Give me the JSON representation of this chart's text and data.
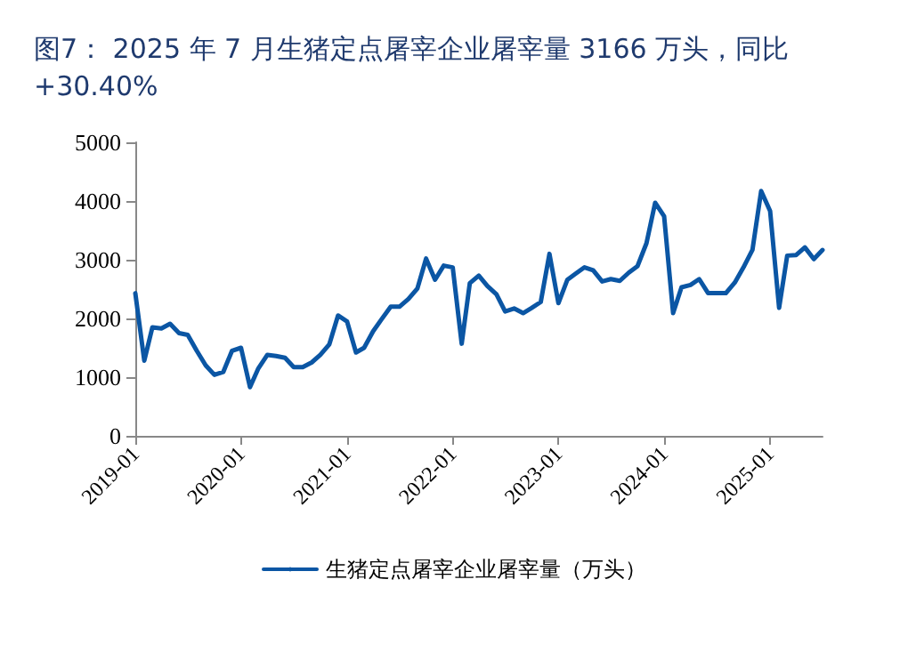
{
  "chart_data": {
    "type": "line",
    "title": "图7： 2025 年 7 月生猪定点屠宰企业屠宰量 3166 万头，同比+30.40%",
    "x": [
      "2019-01",
      "2019-02",
      "2019-03",
      "2019-04",
      "2019-05",
      "2019-06",
      "2019-07",
      "2019-08",
      "2019-09",
      "2019-10",
      "2019-11",
      "2019-12",
      "2020-01",
      "2020-02",
      "2020-03",
      "2020-04",
      "2020-05",
      "2020-06",
      "2020-07",
      "2020-08",
      "2020-09",
      "2020-10",
      "2020-11",
      "2020-12",
      "2021-01",
      "2021-02",
      "2021-03",
      "2021-04",
      "2021-05",
      "2021-06",
      "2021-07",
      "2021-08",
      "2021-09",
      "2021-10",
      "2021-11",
      "2021-12",
      "2022-01",
      "2022-02",
      "2022-03",
      "2022-04",
      "2022-05",
      "2022-06",
      "2022-07",
      "2022-08",
      "2022-09",
      "2022-10",
      "2022-11",
      "2022-12",
      "2023-01",
      "2023-02",
      "2023-03",
      "2023-04",
      "2023-05",
      "2023-06",
      "2023-07",
      "2023-08",
      "2023-09",
      "2023-10",
      "2023-11",
      "2023-12",
      "2024-01",
      "2024-02",
      "2024-03",
      "2024-04",
      "2024-05",
      "2024-06",
      "2024-07",
      "2024-08",
      "2024-09",
      "2024-10",
      "2024-11",
      "2024-12",
      "2025-01",
      "2025-02",
      "2025-03",
      "2025-04",
      "2025-05",
      "2025-06",
      "2025-07"
    ],
    "series": [
      {
        "name": "生猪定点屠宰企业屠宰量（万头）",
        "color": "#0b56a4",
        "values": [
          2430,
          1280,
          1850,
          1830,
          1910,
          1750,
          1720,
          1450,
          1200,
          1040,
          1090,
          1450,
          1500,
          830,
          1150,
          1380,
          1360,
          1330,
          1170,
          1170,
          1250,
          1380,
          1560,
          2050,
          1950,
          1420,
          1500,
          1780,
          1990,
          2200,
          2200,
          2330,
          2510,
          3020,
          2660,
          2900,
          2870,
          1570,
          2600,
          2730,
          2550,
          2410,
          2120,
          2170,
          2090,
          2180,
          2280,
          3100,
          2260,
          2660,
          2760,
          2870,
          2820,
          2630,
          2670,
          2640,
          2780,
          2890,
          3280,
          3970,
          3740,
          2090,
          2530,
          2570,
          2670,
          2430,
          2430,
          2430,
          2610,
          2870,
          3170,
          4170,
          3830,
          2180,
          3070,
          3080,
          3210,
          3010,
          3166
        ]
      }
    ],
    "xlim": [
      "2019-01",
      "2025-07"
    ],
    "xticks": [
      "2019-01",
      "2020-01",
      "2021-01",
      "2022-01",
      "2023-01",
      "2024-01",
      "2025-01"
    ],
    "ylim": [
      0,
      5000
    ],
    "yticks": [
      0,
      1000,
      2000,
      3000,
      4000,
      5000
    ],
    "grid": false,
    "legend": "bottom",
    "marker": "none",
    "line_style": "solid"
  }
}
